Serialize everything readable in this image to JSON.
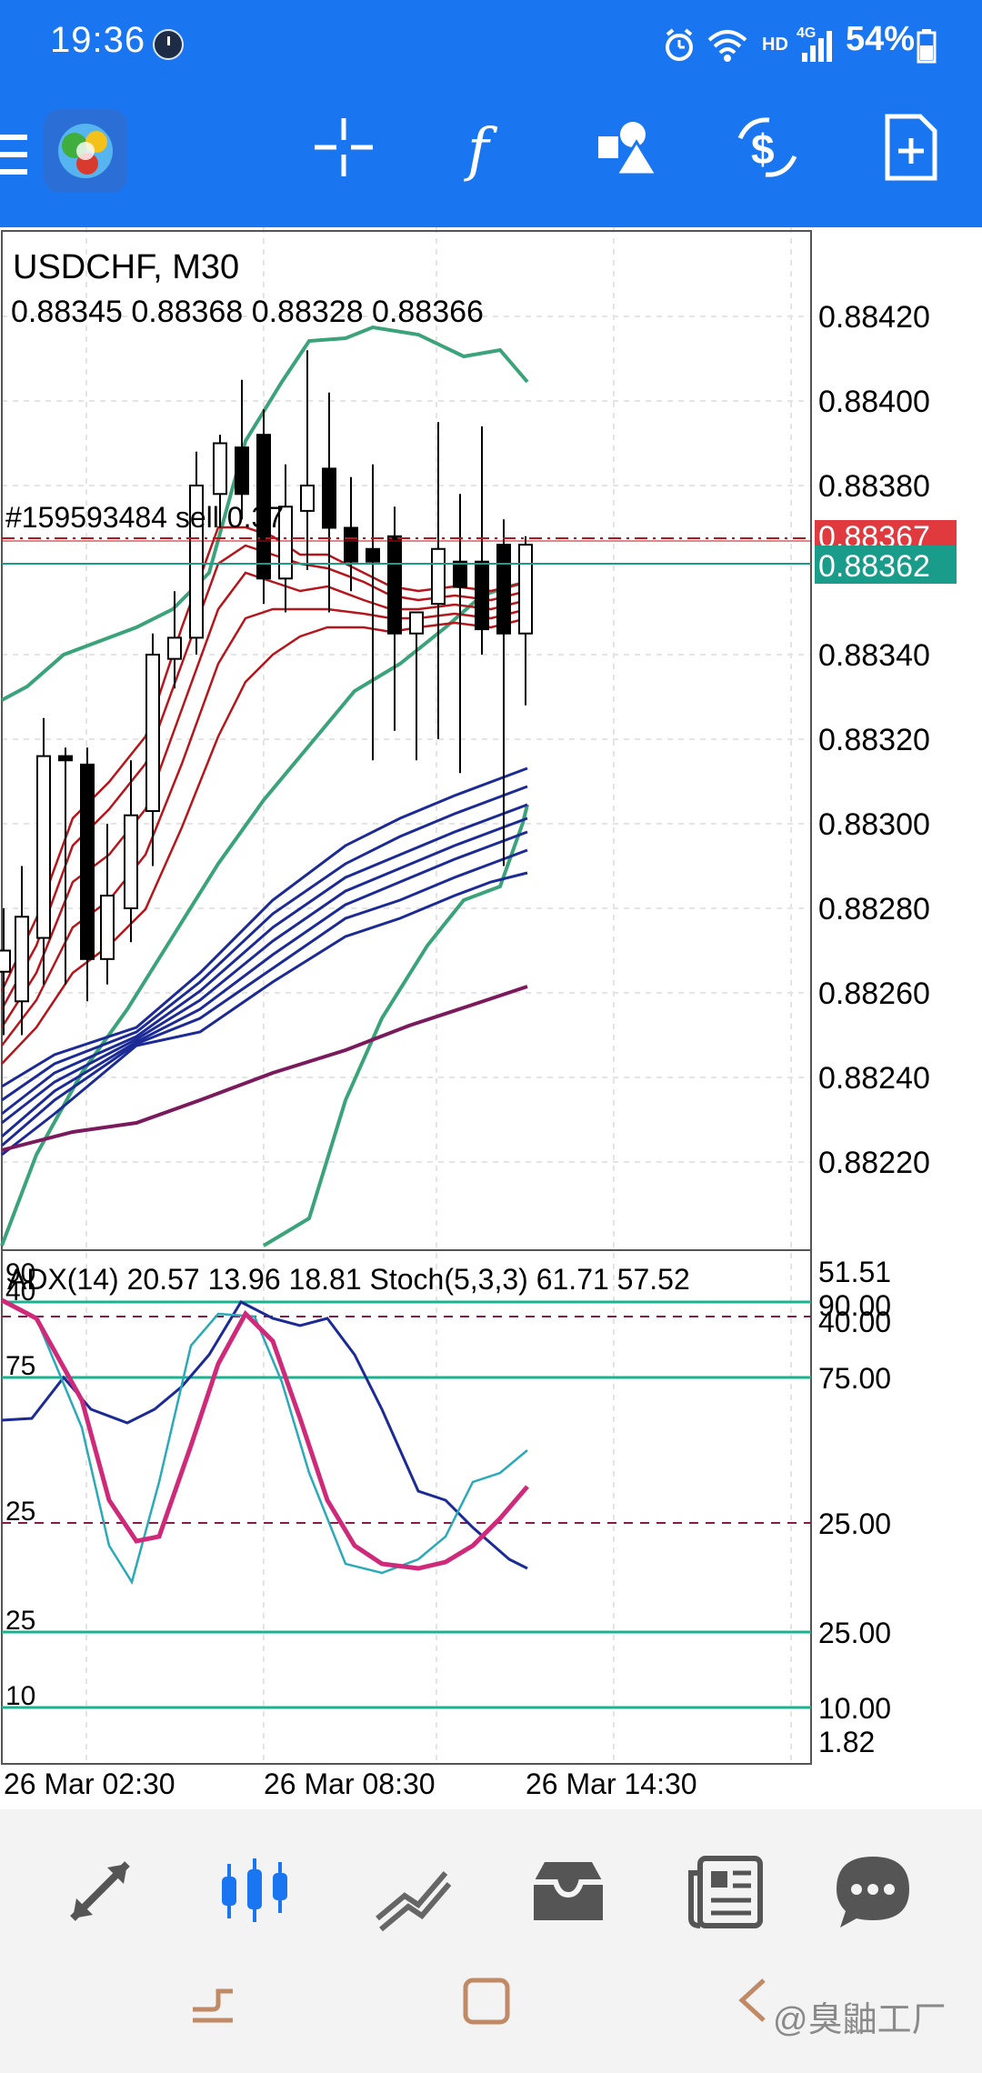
{
  "status_bar": {
    "time": "19:36",
    "hd": "HD",
    "network": "4G",
    "battery": "54%"
  },
  "toolbar": {
    "icons": [
      "menu-icon",
      "app-logo",
      "crosshair-icon",
      "function-icon",
      "objects-icon",
      "trade-dollar-icon",
      "new-order-icon"
    ]
  },
  "chart": {
    "symbol_timeframe": "USDCHF, M30",
    "ohlc": "0.88345 0.88368 0.88328 0.88366",
    "order_label": "#159593484 sell 0.37",
    "ask_label": "0.88367",
    "bid_label": "0.88362",
    "price_ticks": [
      "0.88420",
      "0.88400",
      "0.88380",
      "0.88340",
      "0.88320",
      "0.88300",
      "0.88280",
      "0.88260",
      "0.88240",
      "0.88220"
    ],
    "indicator_title": "ADX(14) 20.57 13.96 18.81 Stoch(5,3,3) 61.71 57.52",
    "indicator_right_labels": [
      "51.51",
      "90.00",
      "40.00",
      "75.00",
      "25.00",
      "25.00",
      "10.00",
      "1.82"
    ],
    "indicator_left_labels": [
      "90",
      "40",
      "75",
      "25",
      "25",
      "10"
    ],
    "time_labels": [
      "26 Mar 02:30",
      "26 Mar 08:30",
      "26 Mar 14:30"
    ]
  },
  "colors": {
    "topbar": "#1976f0",
    "bull": "#ffffff",
    "bear": "#000000",
    "bollinger": "#3aa37a",
    "ma_red": "#b5151b",
    "ma_blue": "#1c2a96",
    "ma_purple": "#7a1a5c",
    "stoch_main": "#cf2a7a",
    "stoch_signal": "#2aa9b8",
    "adx": "#1c2a96",
    "ask": "#e0393e",
    "bid": "#1a9c8a"
  },
  "bottom_nav": {
    "items": [
      "quotes-icon",
      "chart-icon",
      "trade-icon",
      "history-icon",
      "news-icon",
      "chat-icon"
    ],
    "watermark": "@臭鼬工厂"
  }
}
